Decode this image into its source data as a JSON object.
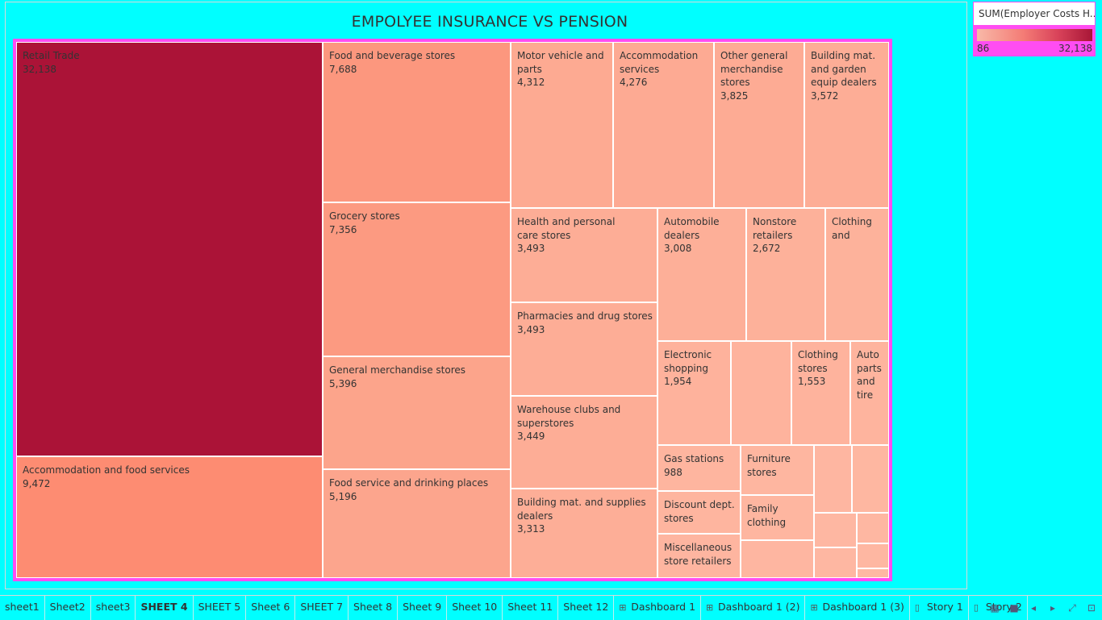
{
  "title": "EMPOLYEE INSURANCE VS PENSION",
  "legend": {
    "title": "SUM(Employer Costs H...",
    "min": "86",
    "max": "32,138"
  },
  "colors": {
    "max": "#a81637",
    "mid": "#f27a6c",
    "min": "#f8b9a8",
    "background": "#00ffff",
    "treemap_border": "#ff4df2"
  },
  "treemap": [
    {
      "label": "Retail Trade",
      "value": "32,138"
    },
    {
      "label": "Accommodation and food services",
      "value": "9,472"
    },
    {
      "label": "Food and beverage stores",
      "value": "7,688"
    },
    {
      "label": "Grocery stores",
      "value": "7,356"
    },
    {
      "label": "General merchandise stores",
      "value": "5,396"
    },
    {
      "label": "Food service and drinking places",
      "value": "5,196"
    },
    {
      "label": "Motor vehicle and parts",
      "value": "4,312"
    },
    {
      "label": "Accommodation services",
      "value": "4,276"
    },
    {
      "label": "Other general merchandise stores",
      "value": "3,825"
    },
    {
      "label": "Building mat. and garden equip dealers",
      "value": "3,572"
    },
    {
      "label": "Health and personal care stores",
      "value": "3,493"
    },
    {
      "label": "Automobile dealers",
      "value": "3,008"
    },
    {
      "label": "Nonstore retailers",
      "value": "2,672"
    },
    {
      "label": "Clothing and",
      "value": ""
    },
    {
      "label": "Pharmacies and drug stores",
      "value": "3,493"
    },
    {
      "label": "Warehouse clubs and superstores",
      "value": "3,449"
    },
    {
      "label": "Building mat. and supplies dealers",
      "value": "3,313"
    },
    {
      "label": "Electronic shopping",
      "value": "1,954"
    },
    {
      "label": "",
      "value": ""
    },
    {
      "label": "Clothing stores",
      "value": "1,553"
    },
    {
      "label": "Auto parts and tire",
      "value": ""
    },
    {
      "label": "Gas stations",
      "value": "988"
    },
    {
      "label": "Discount dept. stores",
      "value": ""
    },
    {
      "label": "Miscellaneous store retailers",
      "value": ""
    },
    {
      "label": "Furniture stores",
      "value": ""
    },
    {
      "label": "Family clothing",
      "value": ""
    },
    {
      "label": "",
      "value": ""
    },
    {
      "label": "",
      "value": ""
    },
    {
      "label": "",
      "value": ""
    },
    {
      "label": "",
      "value": ""
    },
    {
      "label": "",
      "value": ""
    },
    {
      "label": "",
      "value": ""
    },
    {
      "label": "",
      "value": ""
    },
    {
      "label": "",
      "value": ""
    }
  ],
  "tabs": [
    {
      "label": "sheet1",
      "icon": "",
      "active": false
    },
    {
      "label": "Sheet2",
      "icon": "",
      "active": false
    },
    {
      "label": "sheet3",
      "icon": "",
      "active": false
    },
    {
      "label": "SHEET 4",
      "icon": "",
      "active": true
    },
    {
      "label": "SHEET 5",
      "icon": "",
      "active": false
    },
    {
      "label": "Sheet 6",
      "icon": "",
      "active": false
    },
    {
      "label": "SHEET 7",
      "icon": "",
      "active": false
    },
    {
      "label": "Sheet 8",
      "icon": "",
      "active": false
    },
    {
      "label": "Sheet 9",
      "icon": "",
      "active": false
    },
    {
      "label": "Sheet 10",
      "icon": "",
      "active": false
    },
    {
      "label": "Sheet 11",
      "icon": "",
      "active": false
    },
    {
      "label": "Sheet 12",
      "icon": "",
      "active": false
    },
    {
      "label": "Dashboard 1",
      "icon": "dashboard-icon",
      "active": false
    },
    {
      "label": "Dashboard 1 (2)",
      "icon": "dashboard-icon",
      "active": false
    },
    {
      "label": "Dashboard 1 (3)",
      "icon": "dashboard-icon",
      "active": false
    },
    {
      "label": "Story 1",
      "icon": "story-icon",
      "active": false
    },
    {
      "label": "Story 2",
      "icon": "story-icon",
      "active": false
    }
  ],
  "tab_controls": [
    {
      "icon": "show-filmstrip-icon"
    },
    {
      "icon": "show-tabs-icon"
    },
    {
      "icon": "previous-sheet-icon"
    },
    {
      "icon": "next-sheet-icon"
    },
    {
      "icon": "fit-to-window-icon"
    },
    {
      "icon": "presentation-mode-icon"
    }
  ]
}
